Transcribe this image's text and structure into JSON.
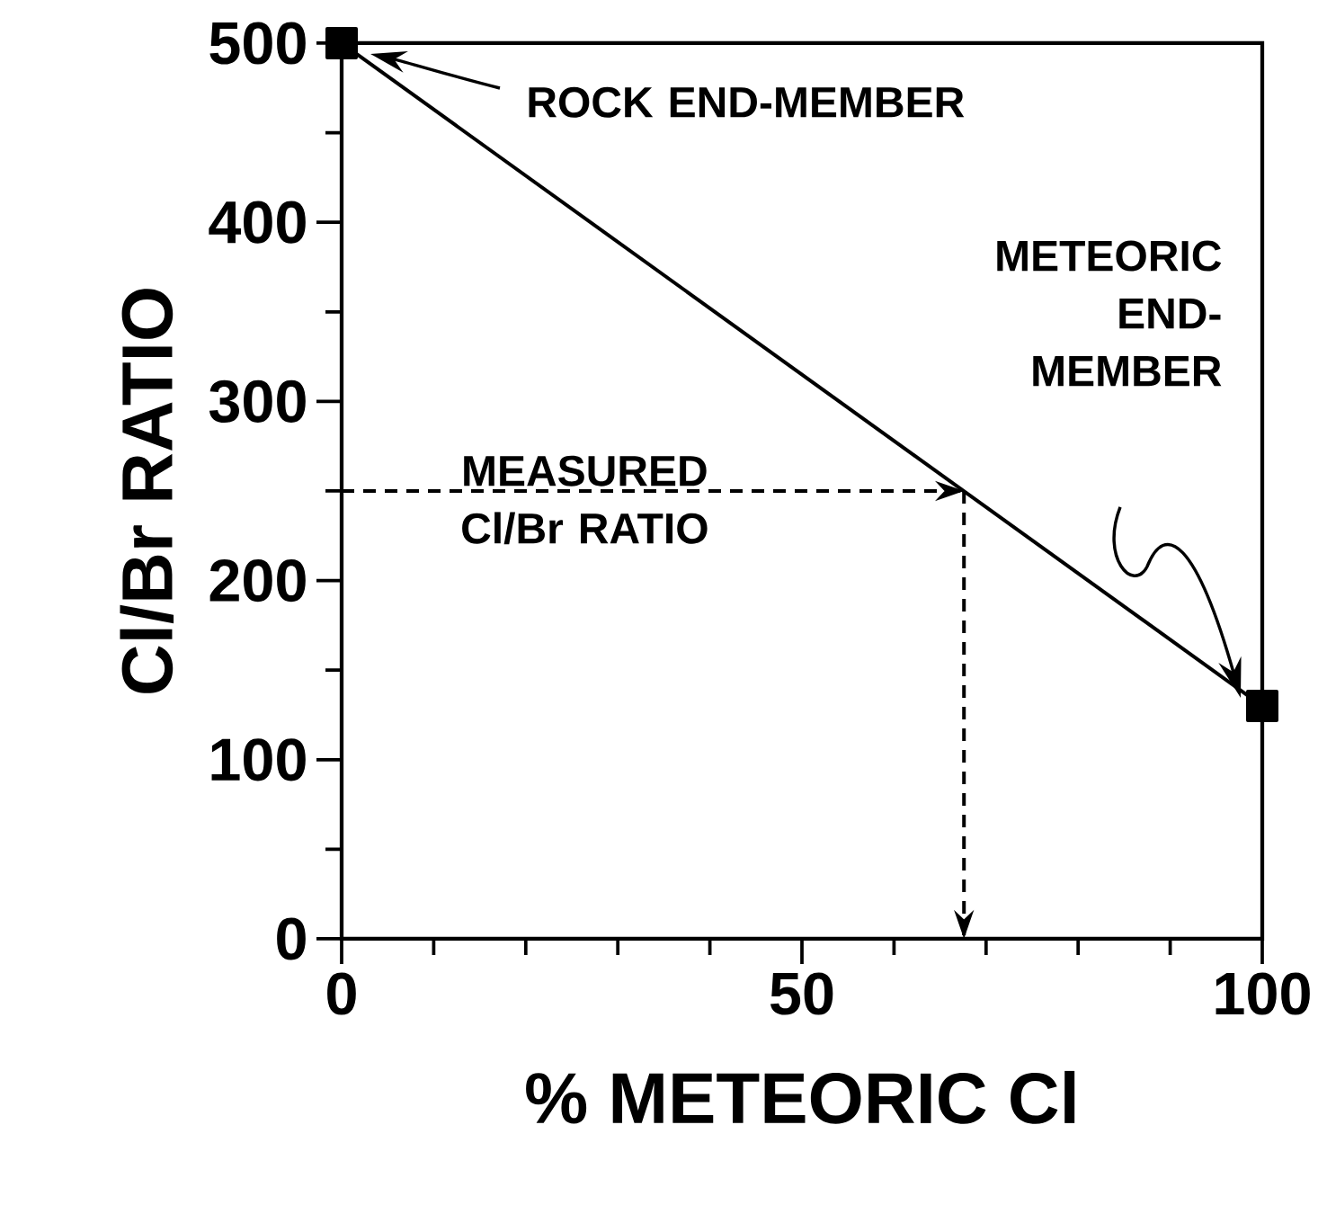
{
  "chart_data": {
    "type": "line",
    "xlabel": "% METEORIC Cl",
    "ylabel": "Cl/Br RATIO",
    "xlim": [
      0,
      100
    ],
    "ylim": [
      0,
      500
    ],
    "xticks": [
      0,
      {
        "value": 10,
        "label": null
      },
      {
        "value": 20,
        "label": null
      },
      {
        "value": 30,
        "label": null
      },
      {
        "value": 40,
        "label": null
      },
      50,
      {
        "value": 60,
        "label": null
      },
      {
        "value": 70,
        "label": null
      },
      {
        "value": 80,
        "label": null
      },
      {
        "value": 90,
        "label": null
      },
      100
    ],
    "yticks": [
      0,
      {
        "value": 50,
        "label": null
      },
      100,
      {
        "value": 150,
        "label": null
      },
      200,
      {
        "value": 250,
        "label": null
      },
      300,
      {
        "value": 350,
        "label": null
      },
      400,
      {
        "value": 450,
        "label": null
      },
      500
    ],
    "series": [
      {
        "color": "#000000",
        "marker": "square",
        "x": [
          0,
          100
        ],
        "values": [
          500,
          130
        ]
      },
      {
        "color": "#000000",
        "marker": "none",
        "line_style": "dashed",
        "x": [
          0,
          67.6
        ],
        "values": [
          250,
          250
        ]
      },
      {
        "color": "#000000",
        "marker": "none",
        "line_style": "dashed",
        "x": [
          67.6,
          67.6
        ],
        "values": [
          250,
          0
        ]
      }
    ],
    "annotations": [
      "ROCK END-MEMBER",
      "METEORIC END-MEMBER",
      "MEASURED Cl/Br RATIO"
    ]
  }
}
